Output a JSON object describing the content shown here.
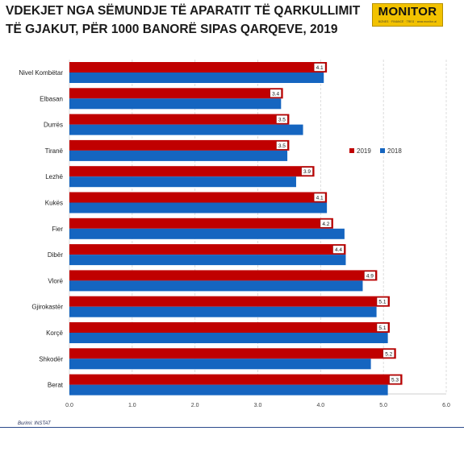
{
  "header": {
    "title": "VDEKJET NGA SËMUNDJE TË APARATIT TË QARKULLIMIT TË GJAKUT, PËR 1000 BANORË SIPAS QARQEVE, 2019",
    "logo_text": "MONITOR",
    "logo_tagline": "BIZNES · FINANCË · TREG · www.monitor.al"
  },
  "footer": {
    "source": "Burimi: INSTAT"
  },
  "chart_data": {
    "type": "bar",
    "orientation": "horizontal",
    "title": "VDEKJET NGA SËMUNDJE TË APARATIT TË QARKULLIMIT TË GJAKUT, PËR 1000 BANORË SIPAS QARQEVE, 2019",
    "categories": [
      "Nivel Kombëtar",
      "Elbasan",
      "Durrës",
      "Tiranë",
      "Lezhë",
      "Kukës",
      "Fier",
      "Dibër",
      "Vlorë",
      "Gjirokastër",
      "Korçë",
      "Shkodër",
      "Berat"
    ],
    "series": [
      {
        "name": "2019",
        "color": "#c00000",
        "values": [
          4.1,
          3.4,
          3.5,
          3.5,
          3.9,
          4.1,
          4.2,
          4.4,
          4.9,
          5.1,
          5.1,
          5.2,
          5.3
        ],
        "data_labels": [
          "4.1",
          "3.4",
          "3.5",
          "3.5",
          "3.9",
          "4.1",
          "4.2",
          "4.4",
          "4.9",
          "5.1",
          "5.1",
          "5.2",
          "5.3"
        ]
      },
      {
        "name": "2018",
        "color": "#1565c0",
        "values": [
          4.05,
          3.37,
          3.72,
          3.47,
          3.61,
          4.1,
          4.38,
          4.4,
          4.67,
          4.89,
          5.07,
          4.8,
          5.07
        ]
      }
    ],
    "x_ticks": [
      "0.0",
      "1.0",
      "2.0",
      "3.0",
      "4.0",
      "5.0",
      "6.0"
    ],
    "xlim": [
      0,
      6
    ],
    "grid": "vertical dashed",
    "legend_position": "right"
  }
}
